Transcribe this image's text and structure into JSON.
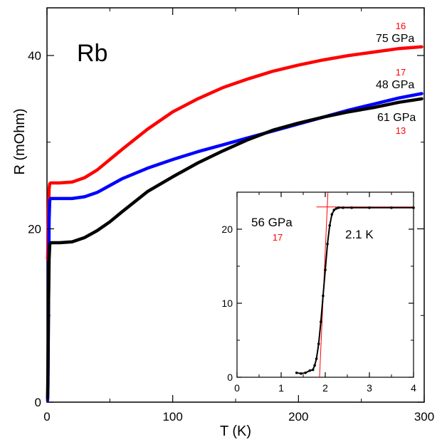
{
  "chart_data": [
    {
      "type": "line",
      "title": "Rb",
      "xlabel": "T (K)",
      "ylabel": "R (mOhm)",
      "xlim": [
        0,
        300
      ],
      "ylim": [
        0,
        45.5
      ],
      "xticks": [
        0,
        100,
        200,
        300
      ],
      "xtick_labels": [
        "0",
        "100",
        "200",
        "300"
      ],
      "yticks": [
        0,
        20,
        40
      ],
      "ytick_labels": [
        "0",
        "20",
        "40"
      ],
      "grid": false,
      "series": [
        {
          "name": "75 GPa",
          "note": "16",
          "color": "#ff0000",
          "x": [
            0.5,
            0.8,
            1.2,
            1.7,
            2.2,
            3,
            5,
            10,
            20,
            30,
            40,
            50,
            60,
            80,
            100,
            120,
            140,
            160,
            180,
            200,
            220,
            240,
            260,
            280,
            298
          ],
          "y": [
            16.5,
            18.5,
            22,
            24.6,
            25.2,
            25.3,
            25.3,
            25.3,
            25.4,
            25.9,
            26.8,
            28.0,
            29.2,
            31.5,
            33.5,
            35.0,
            36.3,
            37.3,
            38.2,
            38.9,
            39.5,
            40.0,
            40.4,
            40.8,
            41.0
          ]
        },
        {
          "name": "48 GPa",
          "note": "17",
          "color": "#0000ff",
          "x": [
            0.5,
            0.8,
            1.2,
            1.7,
            2.2,
            3,
            5,
            10,
            20,
            30,
            40,
            50,
            60,
            80,
            100,
            120,
            140,
            160,
            180,
            200,
            220,
            240,
            260,
            280,
            298
          ],
          "y": [
            0.2,
            2,
            10,
            21,
            23.3,
            23.5,
            23.5,
            23.5,
            23.5,
            23.7,
            24.2,
            25.0,
            25.8,
            27.0,
            28.0,
            28.9,
            29.7,
            30.5,
            31.3,
            32.1,
            32.9,
            33.7,
            34.4,
            35.1,
            35.6
          ]
        },
        {
          "name": "61 GPa",
          "note": "13",
          "color": "#000000",
          "x": [
            0.5,
            0.8,
            1.2,
            1.7,
            2.2,
            3,
            5,
            10,
            20,
            30,
            40,
            50,
            60,
            80,
            100,
            120,
            140,
            160,
            180,
            200,
            220,
            240,
            260,
            280,
            298
          ],
          "y": [
            0.5,
            4,
            11,
            16.5,
            18.2,
            18.4,
            18.4,
            18.4,
            18.5,
            19.0,
            19.8,
            20.8,
            22.0,
            24.3,
            26.0,
            27.6,
            29.0,
            30.3,
            31.4,
            32.2,
            32.9,
            33.5,
            34.0,
            34.6,
            35.0
          ]
        }
      ],
      "annotations": [
        "75 GPa",
        "16",
        "48 GPa",
        "17",
        "61 GPa",
        "13"
      ]
    },
    {
      "type": "line",
      "title": "",
      "xlabel": "",
      "ylabel": "",
      "xlim": [
        0,
        4
      ],
      "ylim": [
        0,
        25
      ],
      "xticks": [
        0,
        1,
        2,
        3,
        4
      ],
      "xtick_labels": [
        "0",
        "1",
        "2",
        "3",
        "4"
      ],
      "yticks": [
        0,
        10,
        20
      ],
      "ytick_labels": [
        "0",
        "10",
        "20"
      ],
      "grid": false,
      "series": [
        {
          "name": "56 GPa",
          "note": "17",
          "color": "#000000",
          "x": [
            1.35,
            1.45,
            1.55,
            1.65,
            1.72,
            1.76,
            1.8,
            1.85,
            1.9,
            1.95,
            2.0,
            2.05,
            2.1,
            2.15,
            2.2,
            2.25,
            2.3,
            2.4,
            2.6,
            3.0,
            3.5,
            4.0
          ],
          "y": [
            0.6,
            0.5,
            0.6,
            0.9,
            1.0,
            1.6,
            2.5,
            4.5,
            7.5,
            11,
            14.5,
            18,
            20.5,
            22,
            22.6,
            22.8,
            22.9,
            22.9,
            22.9,
            22.9,
            22.9,
            22.9
          ]
        }
      ],
      "fit_lines": {
        "color": "#ff0000",
        "vertical_x": 1.93,
        "horizontal_y": 23.0
      },
      "annotations": [
        "56 GPa",
        "17",
        "2.1 K"
      ]
    }
  ]
}
